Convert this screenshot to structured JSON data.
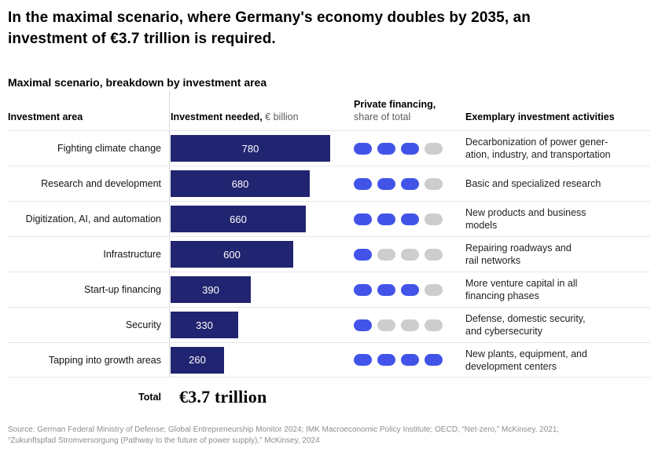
{
  "title": "In the maximal scenario, where Germany's economy doubles by 2035, an\ninvestment of €3.7 trillion is required.",
  "subtitle": "Maximal scenario, breakdown by investment area",
  "table": {
    "headers": {
      "area": "Investment area",
      "investment_bold": "Investment needed,",
      "investment_unit": " € billion",
      "financing_bold": "Private financing,",
      "financing_sub": "share of total",
      "activities": "Exemplary investment activities"
    },
    "rows": [
      {
        "area": "Fighting climate change",
        "value": 780,
        "dots_filled": 3,
        "dots_total": 4,
        "activity": "Decarbonization of power gener-\nation, industry, and transportation"
      },
      {
        "area": "Research and development",
        "value": 680,
        "dots_filled": 3,
        "dots_total": 4,
        "activity": "Basic and specialized research"
      },
      {
        "area": "Digitization, AI, and automation",
        "value": 660,
        "dots_filled": 3,
        "dots_total": 4,
        "activity": "New products and business\nmodels"
      },
      {
        "area": "Infrastructure",
        "value": 600,
        "dots_filled": 1,
        "dots_total": 4,
        "activity": "Repairing roadways and\nrail networks"
      },
      {
        "area": "Start-up financing",
        "value": 390,
        "dots_filled": 3,
        "dots_total": 4,
        "activity": "More venture capital in all\nfinancing phases"
      },
      {
        "area": "Security",
        "value": 330,
        "dots_filled": 1,
        "dots_total": 4,
        "activity": "Defense, domestic security,\nand cybersecurity"
      },
      {
        "area": "Tapping into growth areas",
        "value": 260,
        "dots_filled": 4,
        "dots_total": 4,
        "activity": "New plants, equipment, and\ndevelopment centers"
      }
    ],
    "total_label": "Total",
    "total_value": "€3.7 trillion"
  },
  "source": "Source: German Federal Ministry of Defense; Global Entrepreneurship Monitor 2024; IMK Macroeconomic Policy Institute; OECD; “Net-zero,” McKinsey, 2021;\n“Zukunftspfad Stromversorgung (Pathway to the future of power supply),” McKinsey, 2024",
  "colors": {
    "bar": "#212470",
    "bar_text": "#ffffff",
    "dot_filled": "#4254e8",
    "dot_empty": "#cdcdcd",
    "separator": "#e7e7e7",
    "axis_line": "#d9d9d9",
    "muted_text": "#5e5e5e",
    "source_text": "#8e8e8e"
  },
  "chart_data": {
    "type": "bar",
    "orientation": "horizontal",
    "title": "Maximal scenario, breakdown by investment area",
    "categories": [
      "Fighting climate change",
      "Research and development",
      "Digitization, AI, and automation",
      "Infrastructure",
      "Start-up financing",
      "Security",
      "Tapping into growth areas"
    ],
    "values": [
      780,
      680,
      660,
      600,
      390,
      330,
      260
    ],
    "value_unit": "€ billion",
    "xlabel": "Investment needed, € billion",
    "ylabel": "Investment area",
    "xlim": [
      0,
      780
    ],
    "grid": false,
    "legend": false,
    "data_labels": true,
    "total": "€3.7 trillion",
    "private_financing_share_of_total": [
      0.75,
      0.75,
      0.75,
      0.25,
      0.75,
      0.25,
      1.0
    ],
    "exemplary_activities": [
      "Decarbonization of power generation, industry, and transportation",
      "Basic and specialized research",
      "New products and business models",
      "Repairing roadways and rail networks",
      "More venture capital in all financing phases",
      "Defense, domestic security, and cybersecurity",
      "New plants, equipment, and development centers"
    ]
  }
}
